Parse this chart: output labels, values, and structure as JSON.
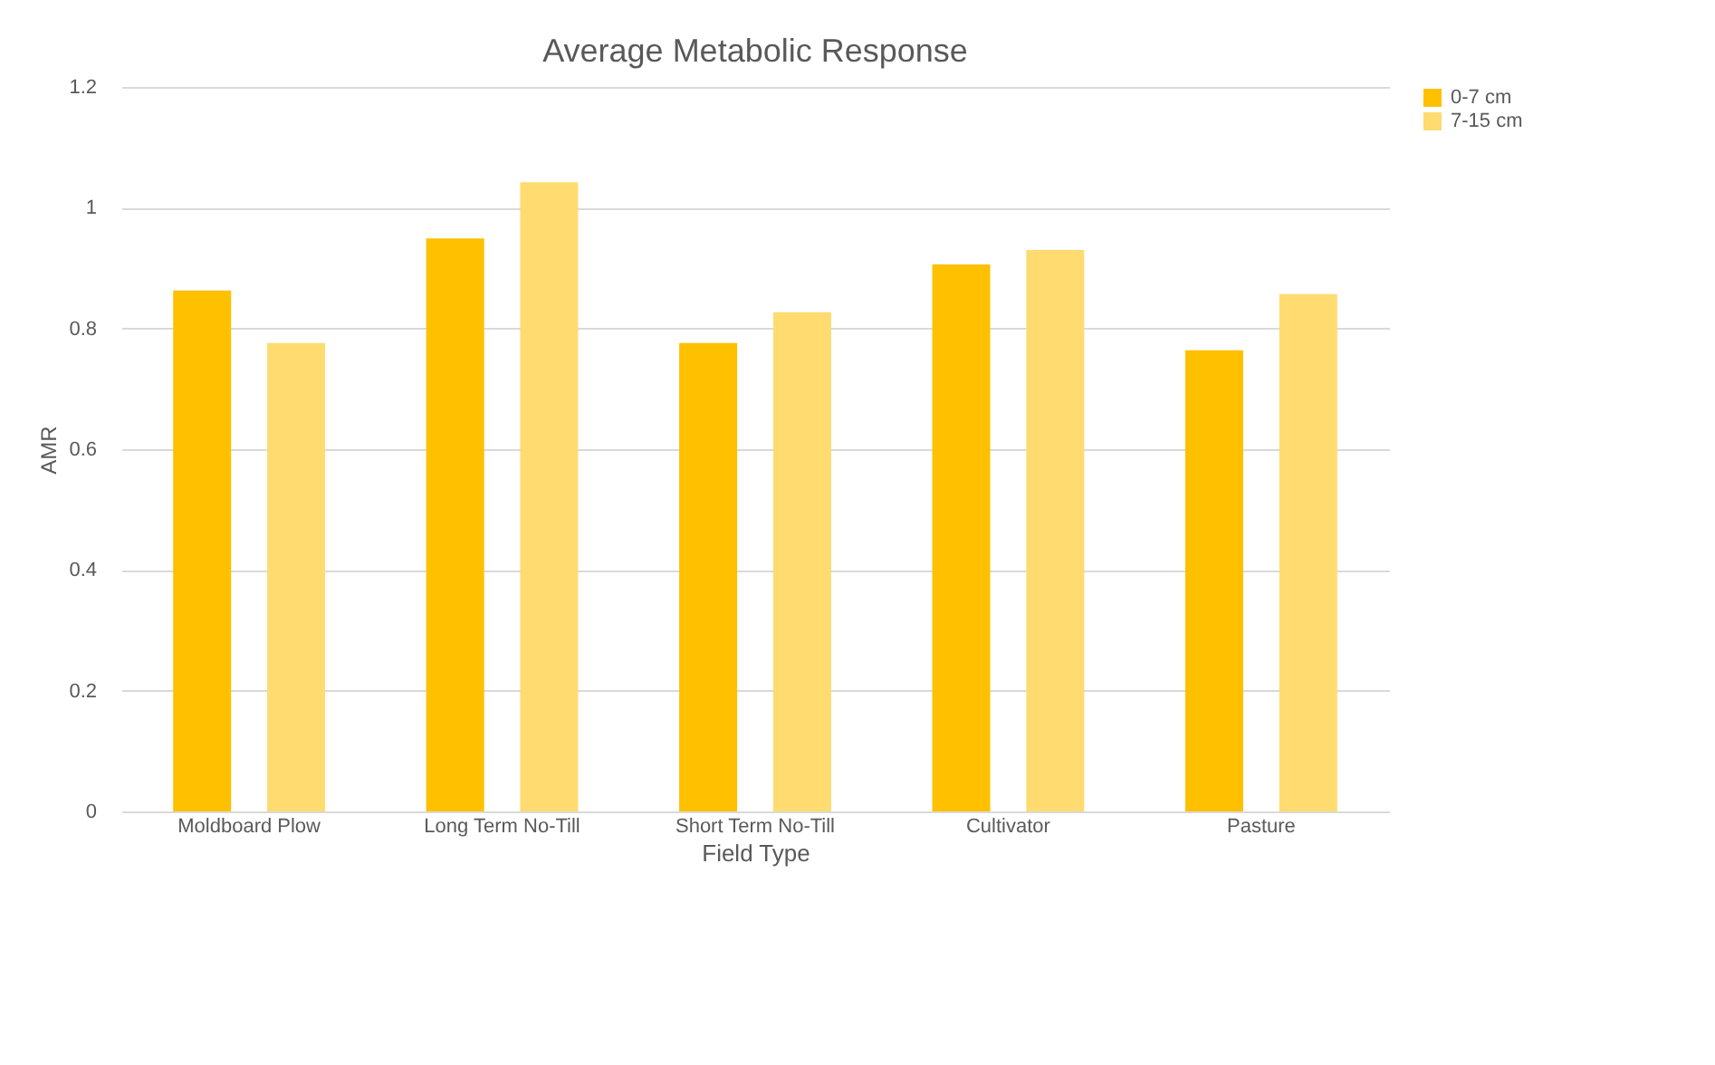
{
  "chart_data": {
    "type": "bar",
    "title": "Average Metabolic Response",
    "xlabel": "Field Type",
    "ylabel": "AMR",
    "categories": [
      "Moldboard Plow",
      "Long Term No-Till",
      "Short Term No-Till",
      "Cultivator",
      "Pasture"
    ],
    "series": [
      {
        "name": "0-7 cm",
        "color": "#ffc000",
        "values": [
          0.863,
          0.949,
          0.776,
          0.906,
          0.764
        ]
      },
      {
        "name": "7-15 cm",
        "color": "#ffdb70",
        "values": [
          0.776,
          1.042,
          0.827,
          0.93,
          0.857
        ]
      }
    ],
    "ylim": [
      0,
      1.2
    ],
    "yticks": [
      0,
      0.2,
      0.4,
      0.6,
      0.8,
      1,
      1.2
    ],
    "grid": "y",
    "legend": "right"
  }
}
